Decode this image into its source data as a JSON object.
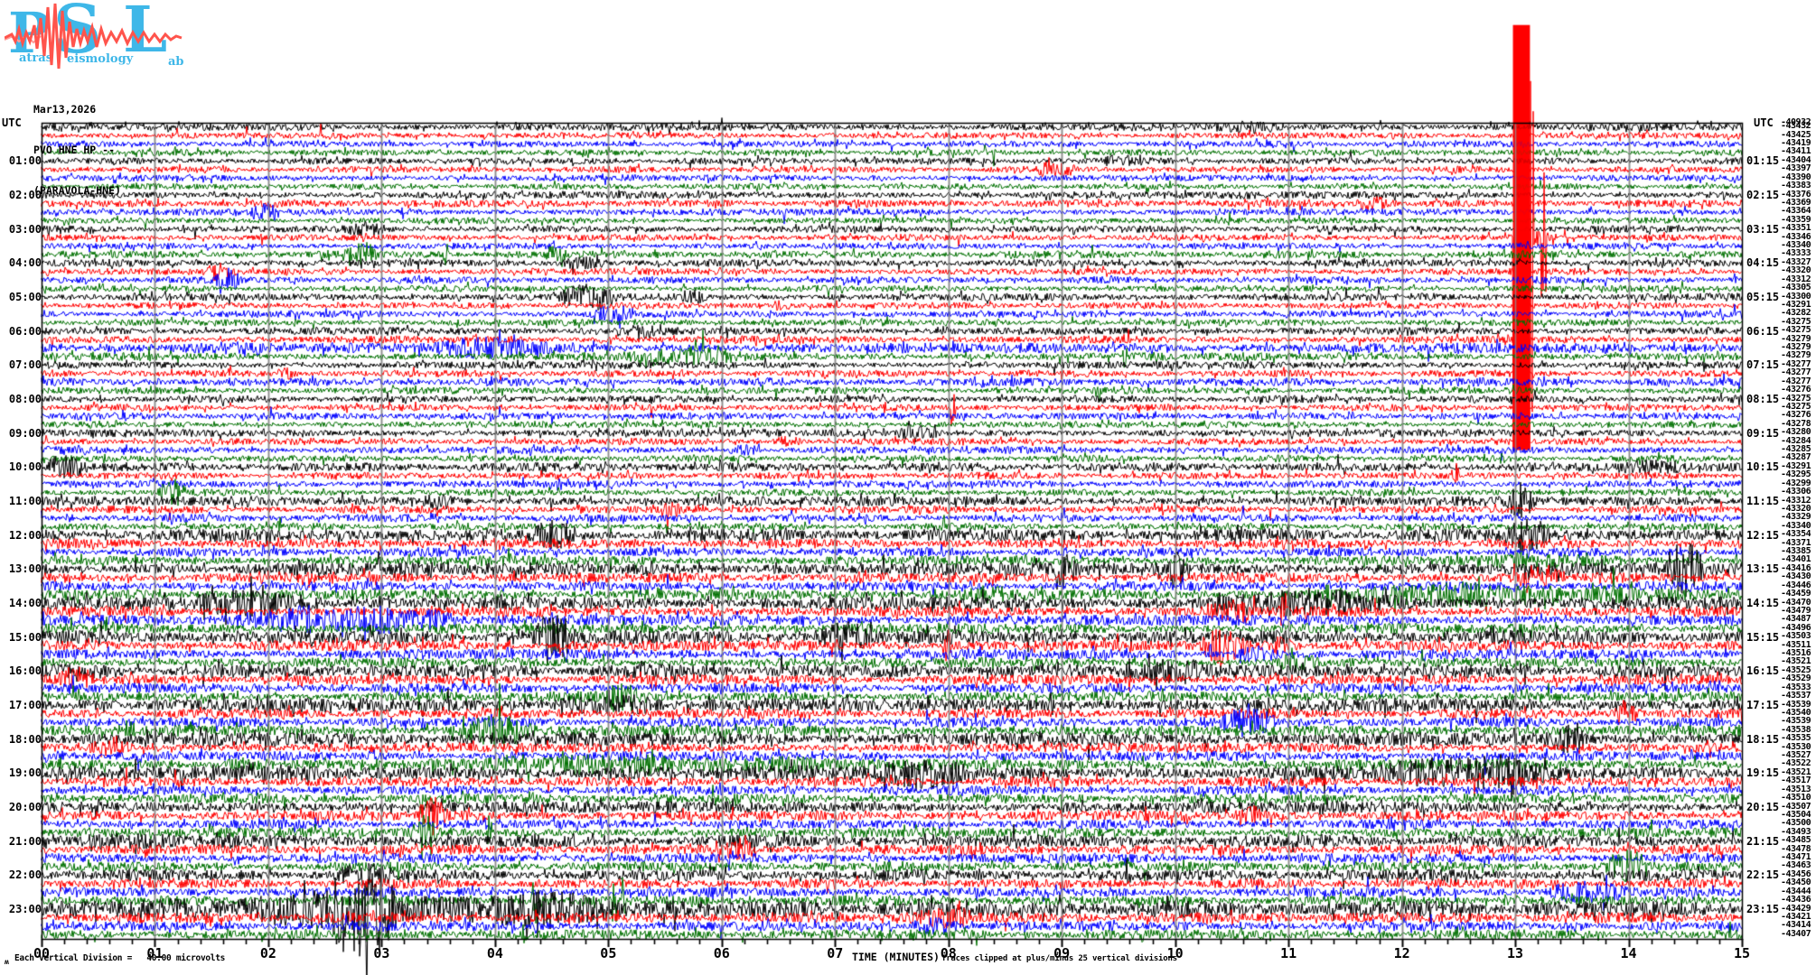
{
  "logo": {
    "letter_p": "P",
    "letter_s": "S",
    "letter_l": "L",
    "word_atras": "atras",
    "word_eismology": "eismology",
    "word_ab": "ab",
    "letter_color": "#3eb7e8",
    "wave_color": "#ff544c"
  },
  "header": {
    "date": "Mar13,2026",
    "station": "PVO HNE HP --",
    "station_name": "(PARAVOLA-HNE)"
  },
  "axes": {
    "left_title": "UTC",
    "right_title": "UTC",
    "overlap_value": "-40932",
    "left_labels": [
      "01:00",
      "02:00",
      "03:00",
      "04:00",
      "05:00",
      "06:00",
      "07:00",
      "08:00",
      "09:00",
      "10:00",
      "11:00",
      "12:00",
      "13:00",
      "14:00",
      "15:00",
      "16:00",
      "17:00",
      "18:00",
      "19:00",
      "20:00",
      "21:00",
      "22:00",
      "23:00"
    ],
    "right_labels": [
      "01:15",
      "02:15",
      "03:15",
      "04:15",
      "05:15",
      "06:15",
      "07:15",
      "08:15",
      "09:15",
      "10:15",
      "11:15",
      "12:15",
      "13:15",
      "14:15",
      "15:15",
      "16:15",
      "17:15",
      "18:15",
      "19:15",
      "20:15",
      "21:15",
      "22:15",
      "23:15"
    ],
    "bottom_labels": [
      "00",
      "01",
      "02",
      "03",
      "04",
      "05",
      "06",
      "07",
      "08",
      "09",
      "10",
      "11",
      "12",
      "13",
      "14",
      "15"
    ],
    "bottom_title": "TIME (MINUTES)"
  },
  "footer": {
    "scale_prefix": "ʍ",
    "scale_label": "Each Vertical Division =   40.00 microvolts",
    "clip_note": "Traces clipped at plus/minus 25 vertical divisions"
  },
  "chart_data": {
    "type": "line",
    "subtype": "helicorder",
    "title": "PVO HNE HP -- (PARAVOLA-HNE) Mar13,2026",
    "xlabel": "TIME (MINUTES)",
    "x_range_minutes": [
      0,
      15
    ],
    "minutes_per_line": 15,
    "rows": 96,
    "clip_divisions": 25,
    "colors_cycle": [
      "#000000",
      "#ff0000",
      "#0000ff",
      "#007000"
    ],
    "grid_color": "#8f8f8f",
    "row_values": [
      -43432,
      -43425,
      -43419,
      -43411,
      -43404,
      -43397,
      -43390,
      -43383,
      -43376,
      -43369,
      -43364,
      -43359,
      -43351,
      -43346,
      -43340,
      -43333,
      -43327,
      -43320,
      -43312,
      -43305,
      -43300,
      -43291,
      -43282,
      -43275,
      -43275,
      -43279,
      -43279,
      -43279,
      -43277,
      -43277,
      -43277,
      -43276,
      -43275,
      -43275,
      -43276,
      -43278,
      -43280,
      -43284,
      -43285,
      -43287,
      -43291,
      -43295,
      -43299,
      -43306,
      -43312,
      -43320,
      -43329,
      -43340,
      -43354,
      -43371,
      -43385,
      -43401,
      -43416,
      -43430,
      -43446,
      -43459,
      -43470,
      -43479,
      -43487,
      -43496,
      -43503,
      -43511,
      -43516,
      -43521,
      -43525,
      -43529,
      -43533,
      -43537,
      -43539,
      -43540,
      -43539,
      -43538,
      -43535,
      -43530,
      -43527,
      -43522,
      -43521,
      -43517,
      -43513,
      -43510,
      -43507,
      -43504,
      -43500,
      -43493,
      -43485,
      -43478,
      -43471,
      -43463,
      -43456,
      -43450,
      -43444,
      -43436,
      -43429,
      -43421,
      -43414,
      -43407
    ],
    "row_amps": [
      1.2,
      1.0,
      1.0,
      1.0,
      1.05,
      1.0,
      1.0,
      0.95,
      1.15,
      1.2,
      1.05,
      0.95,
      1.1,
      1.0,
      1.0,
      1.15,
      1.15,
      1.05,
      1.1,
      1.0,
      1.2,
      1.05,
      1.1,
      1.05,
      1.2,
      1.15,
      1.6,
      1.25,
      1.15,
      1.1,
      1.3,
      1.1,
      1.15,
      1.05,
      1.15,
      1.05,
      1.2,
      1.05,
      1.15,
      1.05,
      1.4,
      1.1,
      1.15,
      1.05,
      1.5,
      1.2,
      1.2,
      1.15,
      2.0,
      1.5,
      1.4,
      1.5,
      2.1,
      1.6,
      1.45,
      1.7,
      2.1,
      1.6,
      1.7,
      1.6,
      2.1,
      1.7,
      1.6,
      1.55,
      2.1,
      1.6,
      1.55,
      1.55,
      2.1,
      1.55,
      1.55,
      1.7,
      2.1,
      1.55,
      1.5,
      1.7,
      2.3,
      1.55,
      1.45,
      1.55,
      1.8,
      1.6,
      1.45,
      1.55,
      1.9,
      1.55,
      1.5,
      1.55,
      1.8,
      1.5,
      1.5,
      1.55,
      2.6,
      1.7,
      1.55,
      1.6
    ],
    "events": [
      {
        "row": 0,
        "m0": 10.2,
        "m1": 11.0,
        "amp": 1.8
      },
      {
        "row": 4,
        "m0": 9.3,
        "m1": 9.7,
        "amp": 2.2
      },
      {
        "row": 5,
        "m0": 8.7,
        "m1": 9.2,
        "amp": 2.6
      },
      {
        "row": 9,
        "m0": 11.5,
        "m1": 12.0,
        "amp": 3.0
      },
      {
        "row": 10,
        "m0": 1.8,
        "m1": 2.2,
        "amp": 2.6
      },
      {
        "row": 12,
        "m0": 2.6,
        "m1": 3.2,
        "amp": 2.2
      },
      {
        "row": 13,
        "m0": 12.98,
        "m1": 13.13,
        "amp": 80,
        "type": "clip"
      },
      {
        "row": 13,
        "m0": 13.13,
        "m1": 14.2,
        "amp": 80,
        "type": "decay"
      },
      {
        "row": 13,
        "m0": 13.9,
        "m1": 15.0,
        "amp": 2.0
      },
      {
        "row": 15,
        "m0": 2.6,
        "m1": 3.05,
        "amp": 3.0
      },
      {
        "row": 15,
        "m0": 3.54,
        "m1": 3.6,
        "amp": 6,
        "type": "spike"
      },
      {
        "row": 15,
        "m0": 4.4,
        "m1": 4.65,
        "amp": 3.0
      },
      {
        "row": 16,
        "m0": 4.5,
        "m1": 5.05,
        "amp": 2.8
      },
      {
        "row": 17,
        "m0": 1.4,
        "m1": 1.75,
        "amp": 3.0
      },
      {
        "row": 18,
        "m0": 1.5,
        "m1": 1.78,
        "amp": 3.5
      },
      {
        "row": 20,
        "m0": 4.5,
        "m1": 5.15,
        "amp": 3.4
      },
      {
        "row": 20,
        "m0": 5.6,
        "m1": 5.9,
        "amp": 2.5
      },
      {
        "row": 21,
        "m0": 6.4,
        "m1": 6.65,
        "amp": 2.5
      },
      {
        "row": 22,
        "m0": 4.8,
        "m1": 5.3,
        "amp": 3.0
      },
      {
        "row": 24,
        "m0": 5.1,
        "m1": 5.5,
        "amp": 2.2
      },
      {
        "row": 26,
        "m0": 0.6,
        "m1": 2.4,
        "amp": 1.8
      },
      {
        "row": 26,
        "m0": 3.3,
        "m1": 4.7,
        "amp": 2.2
      },
      {
        "row": 27,
        "m0": 5.0,
        "m1": 6.4,
        "amp": 2.4
      },
      {
        "row": 27,
        "m0": 9.54,
        "m1": 9.58,
        "amp": 7,
        "type": "spike"
      },
      {
        "row": 29,
        "m0": 2.0,
        "m1": 2.3,
        "amp": 2.2
      },
      {
        "row": 31,
        "m0": 9.3,
        "m1": 9.34,
        "amp": 7,
        "type": "spike"
      },
      {
        "row": 33,
        "m0": 8.02,
        "m1": 8.06,
        "amp": 7,
        "type": "spike"
      },
      {
        "row": 36,
        "m0": 7.5,
        "m1": 7.95,
        "amp": 2.6
      },
      {
        "row": 37,
        "m0": 6.4,
        "m1": 6.75,
        "amp": 2.6
      },
      {
        "row": 38,
        "m0": 6.0,
        "m1": 6.4,
        "amp": 2.8
      },
      {
        "row": 40,
        "m0": 0.0,
        "m1": 0.45,
        "amp": 3.5
      },
      {
        "row": 40,
        "m0": 13.8,
        "m1": 14.7,
        "amp": 2.6
      },
      {
        "row": 41,
        "m0": 12.44,
        "m1": 12.5,
        "amp": 5,
        "type": "spike"
      },
      {
        "row": 43,
        "m0": 1.0,
        "m1": 1.3,
        "amp": 4.5
      },
      {
        "row": 43,
        "m0": 1.12,
        "m1": 1.16,
        "amp": 6,
        "type": "spike"
      },
      {
        "row": 44,
        "m0": 3.3,
        "m1": 3.75,
        "amp": 2.8
      },
      {
        "row": 44,
        "m0": 12.9,
        "m1": 13.2,
        "amp": 3.4
      },
      {
        "row": 45,
        "m0": 5.4,
        "m1": 5.65,
        "amp": 2.8
      },
      {
        "row": 48,
        "m0": 4.3,
        "m1": 4.75,
        "amp": 2.8
      },
      {
        "row": 48,
        "m0": 12.9,
        "m1": 13.35,
        "amp": 3.2
      },
      {
        "row": 51,
        "m0": 12.5,
        "m1": 14.2,
        "amp": 2.2
      },
      {
        "row": 52,
        "m0": 8.9,
        "m1": 9.15,
        "amp": 2.8
      },
      {
        "row": 52,
        "m0": 9.9,
        "m1": 10.1,
        "amp": 3.6
      },
      {
        "row": 52,
        "m0": 14.3,
        "m1": 14.7,
        "amp": 4.0
      },
      {
        "row": 53,
        "m0": 13.0,
        "m1": 13.5,
        "amp": 2.6
      },
      {
        "row": 55,
        "m0": 8.0,
        "m1": 8.6,
        "amp": 2.2
      },
      {
        "row": 55,
        "m0": 11.2,
        "m1": 14.9,
        "amp": 2.6
      },
      {
        "row": 55,
        "m0": 11.33,
        "m1": 11.38,
        "amp": 6,
        "type": "spike"
      },
      {
        "row": 56,
        "m0": 1.2,
        "m1": 2.6,
        "amp": 2.8
      },
      {
        "row": 56,
        "m0": 10.0,
        "m1": 12.4,
        "amp": 2.0
      },
      {
        "row": 57,
        "m0": 10.2,
        "m1": 10.8,
        "amp": 3.0
      },
      {
        "row": 57,
        "m0": 10.93,
        "m1": 10.98,
        "amp": 9,
        "type": "spike"
      },
      {
        "row": 58,
        "m0": 1.55,
        "m1": 3.8,
        "amp": 4.2
      },
      {
        "row": 60,
        "m0": 4.3,
        "m1": 4.75,
        "amp": 4.6
      },
      {
        "row": 60,
        "m0": 6.8,
        "m1": 7.35,
        "amp": 2.8
      },
      {
        "row": 61,
        "m0": 7.97,
        "m1": 8.02,
        "amp": 8,
        "type": "spike"
      },
      {
        "row": 61,
        "m0": 10.2,
        "m1": 10.7,
        "amp": 5.0
      },
      {
        "row": 61,
        "m0": 10.7,
        "m1": 11.1,
        "amp": 2.5
      },
      {
        "row": 62,
        "m0": 10.5,
        "m1": 11.0,
        "amp": 3.0
      },
      {
        "row": 63,
        "m0": 10.8,
        "m1": 11.35,
        "amp": 3.0
      },
      {
        "row": 64,
        "m0": 9.4,
        "m1": 10.4,
        "amp": 3.0
      },
      {
        "row": 65,
        "m0": 0.1,
        "m1": 0.5,
        "amp": 2.8
      },
      {
        "row": 67,
        "m0": 4.95,
        "m1": 5.3,
        "amp": 3.6
      },
      {
        "row": 68,
        "m0": 4.4,
        "m1": 5.6,
        "amp": 2.6
      },
      {
        "row": 69,
        "m0": 13.8,
        "m1": 14.15,
        "amp": 3.0
      },
      {
        "row": 70,
        "m0": 10.35,
        "m1": 10.95,
        "amp": 3.0
      },
      {
        "row": 71,
        "m0": 3.55,
        "m1": 4.45,
        "amp": 4.0
      },
      {
        "row": 72,
        "m0": 13.25,
        "m1": 13.65,
        "amp": 3.0
      },
      {
        "row": 73,
        "m0": 0.3,
        "m1": 0.9,
        "amp": 2.4
      },
      {
        "row": 75,
        "m0": 1.5,
        "m1": 2.2,
        "amp": 2.0
      },
      {
        "row": 75,
        "m0": 3.2,
        "m1": 7.7,
        "amp": 2.4
      },
      {
        "row": 76,
        "m0": 7.2,
        "m1": 8.3,
        "amp": 2.4
      },
      {
        "row": 76,
        "m0": 11.5,
        "m1": 13.6,
        "amp": 2.4
      },
      {
        "row": 79,
        "m0": 3.33,
        "m1": 3.37,
        "amp": 11,
        "type": "spike"
      },
      {
        "row": 81,
        "m0": 3.3,
        "m1": 3.6,
        "amp": 4.0
      },
      {
        "row": 81,
        "m0": 10.5,
        "m1": 10.85,
        "amp": 3.0
      },
      {
        "row": 83,
        "m0": 3.3,
        "m1": 3.5,
        "amp": 4.0
      },
      {
        "row": 83,
        "m0": 3.93,
        "m1": 3.97,
        "amp": 8,
        "type": "spike"
      },
      {
        "row": 84,
        "m0": 0.2,
        "m1": 1.3,
        "amp": 2.4
      },
      {
        "row": 85,
        "m0": 6.0,
        "m1": 6.35,
        "amp": 2.8
      },
      {
        "row": 87,
        "m0": 13.75,
        "m1": 14.25,
        "amp": 3.6
      },
      {
        "row": 88,
        "m0": 2.5,
        "m1": 3.2,
        "amp": 2.2
      },
      {
        "row": 90,
        "m0": 13.2,
        "m1": 14.05,
        "amp": 3.0
      },
      {
        "row": 91,
        "m0": 4.32,
        "m1": 4.36,
        "amp": 13,
        "type": "spike"
      },
      {
        "row": 91,
        "m0": 5.03,
        "m1": 5.08,
        "amp": 14,
        "type": "spike"
      },
      {
        "row": 91,
        "m0": 5.12,
        "m1": 5.15,
        "amp": 10,
        "type": "spike"
      },
      {
        "row": 92,
        "m0": 0.0,
        "m1": 6.5,
        "amp": 2.4
      },
      {
        "row": 92,
        "m0": 2.5,
        "m1": 3.2,
        "amp": 3.2
      },
      {
        "row": 93,
        "m0": 7.5,
        "m1": 8.3,
        "amp": 2.6
      },
      {
        "row": 94,
        "m0": 7.6,
        "m1": 8.15,
        "amp": 2.8
      },
      {
        "row": 95,
        "m0": 4.24,
        "m1": 4.28,
        "amp": 4,
        "type": "spike"
      }
    ]
  }
}
